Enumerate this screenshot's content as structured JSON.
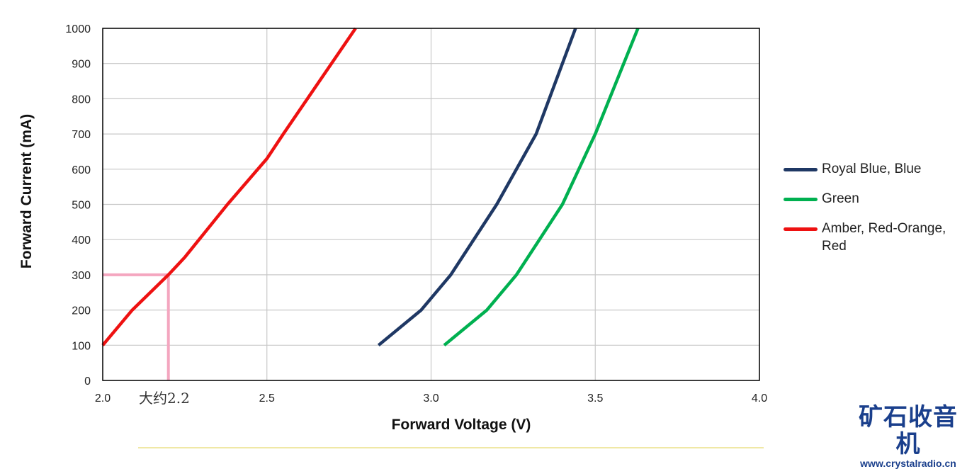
{
  "chart_data": {
    "type": "line",
    "xlabel": "Forward Voltage (V)",
    "ylabel": "Forward Current (mA)",
    "xlim": [
      2.0,
      4.0
    ],
    "ylim": [
      0,
      1000
    ],
    "x_ticks": [
      "2.0",
      "2.5",
      "3.0",
      "3.5",
      "4.0"
    ],
    "y_ticks": [
      "0",
      "100",
      "200",
      "300",
      "400",
      "500",
      "600",
      "700",
      "800",
      "900",
      "1000"
    ],
    "grid": true,
    "legend_position": "right",
    "series": [
      {
        "name": "Royal Blue, Blue",
        "color": "#1f3864",
        "points": [
          [
            2.84,
            100
          ],
          [
            2.97,
            200
          ],
          [
            3.06,
            300
          ],
          [
            3.2,
            500
          ],
          [
            3.32,
            700
          ],
          [
            3.44,
            1000
          ]
        ]
      },
      {
        "name": "Green",
        "color": "#00b050",
        "points": [
          [
            3.04,
            100
          ],
          [
            3.17,
            200
          ],
          [
            3.26,
            300
          ],
          [
            3.4,
            500
          ],
          [
            3.5,
            700
          ],
          [
            3.63,
            1000
          ]
        ]
      },
      {
        "name": "Amber, Red-Orange, Red",
        "color": "#ee1111",
        "points": [
          [
            2.0,
            100
          ],
          [
            2.09,
            200
          ],
          [
            2.2,
            300
          ],
          [
            2.25,
            350
          ],
          [
            2.38,
            500
          ],
          [
            2.5,
            630
          ],
          [
            2.55,
            700
          ],
          [
            2.77,
            1000
          ]
        ]
      }
    ],
    "annotation": {
      "x": 2.2,
      "y": 300,
      "color": "#f4a6bf",
      "text": "大约2.2"
    }
  },
  "logo": {
    "text": "矿石收音机",
    "url": "www.crystalradio.cn"
  }
}
